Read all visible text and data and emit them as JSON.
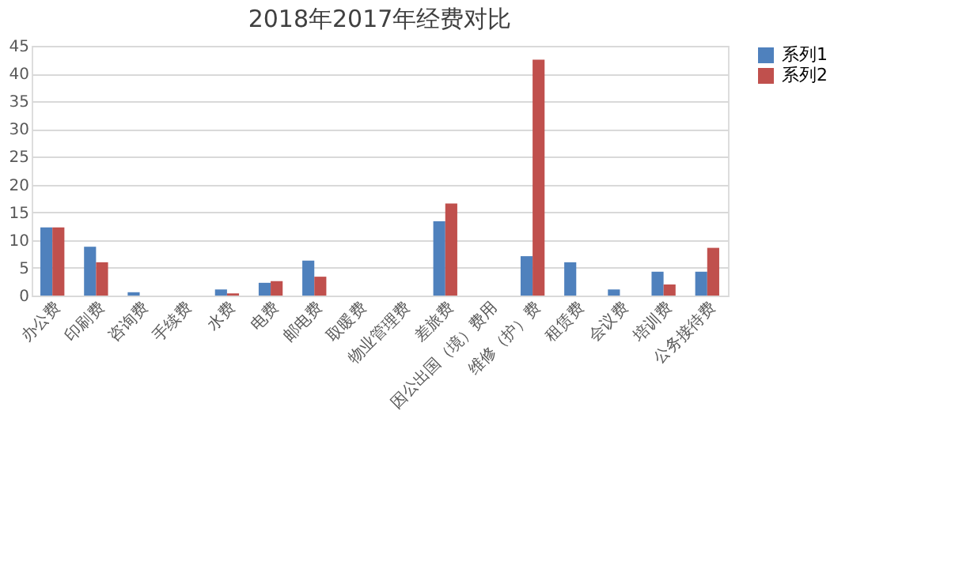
{
  "chart_data": {
    "type": "bar",
    "title": "2018年2017年经费对比",
    "categories": [
      "办公费",
      "印刷费",
      "咨询费",
      "手续费",
      "水费",
      "电费",
      "邮电费",
      "取暖费",
      "物业管理费",
      "差旅费",
      "因公出国（境）费用",
      "维修（护）费",
      "租赁费",
      "会议费",
      "培训费",
      "公务接待费"
    ],
    "series": [
      {
        "name": "系列1",
        "color": "#4f81bd",
        "values": [
          12.3,
          8.8,
          0.6,
          0,
          1.1,
          2.3,
          6.3,
          0,
          0,
          13.4,
          0,
          7.1,
          6.0,
          1.1,
          4.3,
          4.3
        ]
      },
      {
        "name": "系列2",
        "color": "#c0504d",
        "values": [
          12.3,
          6.0,
          0,
          0,
          0.4,
          2.6,
          3.4,
          0,
          0,
          16.6,
          0,
          42.5,
          0,
          0,
          2.0,
          8.6
        ]
      }
    ],
    "ylim": [
      0,
      45
    ],
    "yticks": [
      0,
      5,
      10,
      15,
      20,
      25,
      30,
      35,
      40,
      45
    ],
    "grid": "y",
    "legend": "right"
  }
}
